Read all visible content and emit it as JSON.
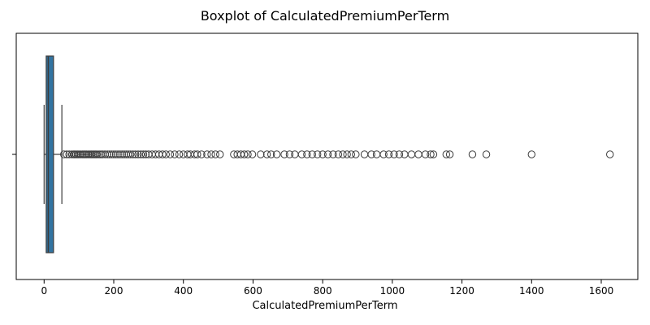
{
  "chart_data": {
    "type": "box",
    "title": "Boxplot of CalculatedPremiumPerTerm",
    "xlabel": "CalculatedPremiumPerTerm",
    "ylabel": "",
    "xlim": [
      -80,
      1705
    ],
    "xticks": [
      0,
      200,
      400,
      600,
      800,
      1000,
      1200,
      1400,
      1600
    ],
    "box": {
      "whisker_low": 0,
      "q1": 6,
      "median": 12,
      "q3": 27,
      "whisker_high": 51
    },
    "outliers": [
      57,
      65,
      72,
      80,
      85,
      88,
      92,
      96,
      100,
      105,
      110,
      114,
      118,
      122,
      127,
      132,
      136,
      140,
      144,
      148,
      152,
      158,
      163,
      168,
      175,
      182,
      188,
      194,
      200,
      206,
      212,
      218,
      224,
      230,
      236,
      242,
      248,
      255,
      262,
      270,
      278,
      285,
      292,
      300,
      310,
      320,
      330,
      340,
      350,
      362,
      375,
      388,
      400,
      412,
      420,
      432,
      440,
      452,
      468,
      480,
      492,
      505,
      545,
      555,
      565,
      575,
      585,
      598,
      622,
      640,
      652,
      668,
      690,
      705,
      720,
      740,
      755,
      770,
      785,
      800,
      815,
      830,
      845,
      858,
      870,
      882,
      895,
      920,
      940,
      955,
      975,
      990,
      1005,
      1020,
      1035,
      1055,
      1075,
      1095,
      1110,
      1118,
      1155,
      1165,
      1230,
      1270,
      1400,
      1625
    ],
    "colors": {
      "box": "#3274a1",
      "line": "#3d3d3d"
    }
  }
}
